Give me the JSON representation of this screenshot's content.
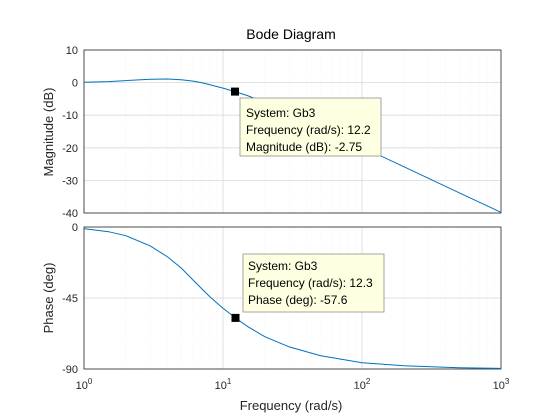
{
  "chart_data": {
    "type": "line",
    "title": "Bode Diagram",
    "xlabel": "Frequency  (rad/s)",
    "xscale": "log",
    "xlim": [
      1,
      1000
    ],
    "grid": true,
    "x_tick_labels": [
      {
        "base": "10",
        "exp": "0"
      },
      {
        "base": "10",
        "exp": "1"
      },
      {
        "base": "10",
        "exp": "2"
      },
      {
        "base": "10",
        "exp": "3"
      }
    ],
    "magnitude": {
      "ylabel": "Magnitude (dB)",
      "ylim": [
        -40,
        10
      ],
      "yticks": [
        10,
        0,
        -10,
        -20,
        -30,
        -40
      ],
      "series": [
        {
          "x": [
            1,
            1.5,
            2,
            3,
            4,
            5,
            6,
            7,
            8,
            9,
            10,
            12.2,
            15,
            20,
            30,
            50,
            100,
            200,
            500,
            1000
          ],
          "values": [
            0.1,
            0.3,
            0.6,
            1.0,
            1.1,
            0.9,
            0.5,
            0.0,
            -0.6,
            -1.2,
            -1.7,
            -2.75,
            -4.0,
            -6.1,
            -9.4,
            -13.7,
            -19.8,
            -25.8,
            -33.8,
            -39.8
          ]
        }
      ],
      "datatip": {
        "x": 12.2,
        "y": -2.75,
        "lines": [
          "System: Gb3",
          "Frequency (rad/s): 12.2",
          "Magnitude (dB): -2.75"
        ]
      }
    },
    "phase": {
      "ylabel": "Phase (deg)",
      "ylim": [
        -90,
        0
      ],
      "yticks": [
        0,
        -45,
        -90
      ],
      "series": [
        {
          "x": [
            1,
            1.5,
            2,
            3,
            4,
            5,
            6,
            7,
            8,
            9,
            10,
            12.3,
            15,
            20,
            30,
            50,
            100,
            200,
            500,
            1000
          ],
          "values": [
            -1,
            -3,
            -5.5,
            -12,
            -19,
            -26,
            -33,
            -39,
            -44,
            -48,
            -51.5,
            -57.6,
            -63,
            -69.5,
            -76,
            -81.5,
            -86,
            -88,
            -89.2,
            -89.6
          ]
        }
      ],
      "datatip": {
        "x": 12.3,
        "y": -57.6,
        "lines": [
          "System: Gb3",
          "Frequency (rad/s): 12.3",
          "Phase (deg): -57.6"
        ]
      }
    },
    "line_color": "#0072bd",
    "datatip_bg": "#ffffe1",
    "watermark": "https://blog.csdn.net/qq_39554681"
  }
}
